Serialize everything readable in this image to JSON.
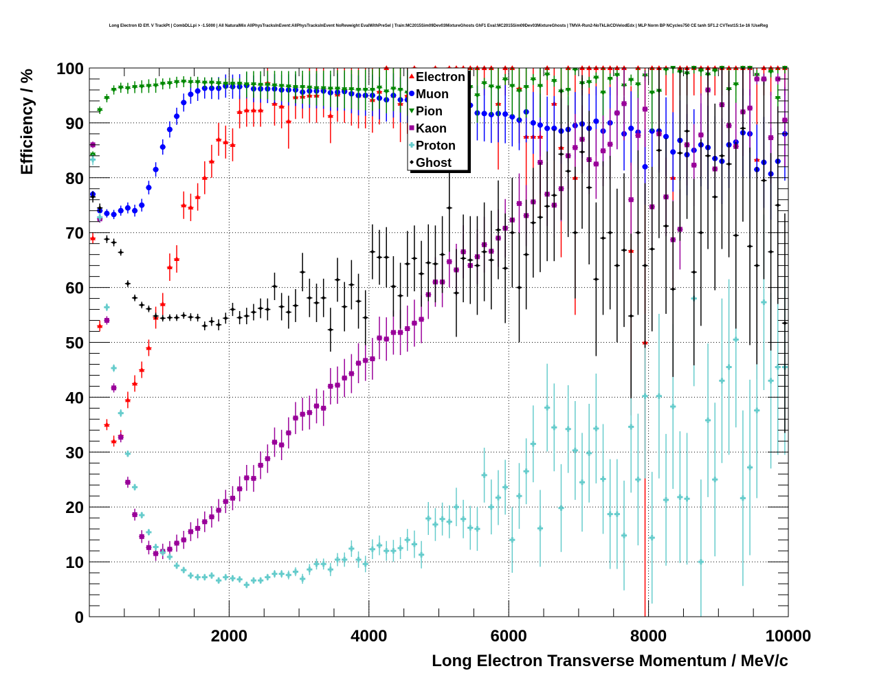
{
  "chart_data": {
    "type": "scatter",
    "title": "Long Electron ID Eff. V TrackPt | CombDLLpi > -1.5000 | All NaturalMix AllPhysTracksInEvent:AllPhysTracksInEvent NoReweight EvalWithPreSel | Train:MC2015Sim09Dev03MixtureGhosts GhF1 Eval:MC2015Sim09Dev03MixtureGhosts | TMVA-Run2-NoTkLikCDVelodEdx | MLP Norm BP NCycles750 CE tanh SF1.2 CVTest15:1e-16 !UseReg",
    "xlabel": "Long Electron Transverse Momentum / MeV/c",
    "ylabel": "Efficiency / %",
    "xlim": [
      0,
      10000
    ],
    "ylim": [
      0,
      100
    ],
    "x_ticks": [
      "2000",
      "4000",
      "6000",
      "8000",
      "10000"
    ],
    "x_tick_values": [
      2000,
      4000,
      6000,
      8000,
      10000
    ],
    "y_ticks": [
      "0",
      "10",
      "20",
      "30",
      "40",
      "50",
      "60",
      "70",
      "80",
      "90",
      "100"
    ],
    "y_tick_values": [
      0,
      10,
      20,
      30,
      40,
      50,
      60,
      70,
      80,
      90,
      100
    ],
    "grid": true,
    "legend_position": "top-center",
    "bin_width": 100,
    "x": [
      50,
      150,
      250,
      350,
      450,
      550,
      650,
      750,
      850,
      950,
      1050,
      1150,
      1250,
      1350,
      1450,
      1550,
      1650,
      1750,
      1850,
      1950,
      2050,
      2150,
      2250,
      2350,
      2450,
      2550,
      2650,
      2750,
      2850,
      2950,
      3050,
      3150,
      3250,
      3350,
      3450,
      3550,
      3650,
      3750,
      3850,
      3950,
      4050,
      4150,
      4250,
      4350,
      4450,
      4550,
      4650,
      4750,
      4850,
      4950,
      5050,
      5150,
      5250,
      5350,
      5450,
      5550,
      5650,
      5750,
      5850,
      5950,
      6050,
      6150,
      6250,
      6350,
      6450,
      6550,
      6650,
      6750,
      6850,
      6950,
      7050,
      7150,
      7250,
      7350,
      7450,
      7550,
      7650,
      7750,
      7850,
      7950,
      8050,
      8150,
      8250,
      8350,
      8450,
      8550,
      8650,
      8750,
      8850,
      8950,
      9050,
      9150,
      9250,
      9350,
      9450,
      9550,
      9650,
      9750,
      9850,
      9950
    ],
    "series": [
      {
        "name": "Electron",
        "color": "#ff0000",
        "marker": "triangle-up",
        "values": [
          69,
          53,
          35,
          32,
          33,
          39.5,
          42.5,
          45,
          49,
          54.5,
          57,
          63.7,
          65.2,
          75,
          74.6,
          76.5,
          80,
          83,
          87,
          86.5,
          86,
          92,
          92.3,
          92.3,
          92.3,
          97.3,
          93.5,
          93,
          90.3,
          94.7,
          94.8,
          95,
          95,
          96,
          91.3,
          95.2,
          96,
          95.5,
          95,
          95,
          94.2,
          95.7,
          100,
          95,
          93.5,
          95,
          100,
          93,
          97.7,
          100,
          96,
          100,
          100,
          100,
          100,
          100,
          100,
          100,
          93.5,
          100,
          100,
          96.3,
          87.5,
          87.5,
          87.5,
          100,
          93.5,
          85.5,
          100,
          80,
          100,
          100,
          100,
          100,
          100,
          100,
          100,
          66.7,
          100,
          50,
          100,
          100,
          100,
          80,
          100,
          100,
          100,
          100,
          100,
          100,
          100,
          100,
          100,
          100,
          100,
          83.3,
          100,
          100,
          100,
          100
        ],
        "errors": [
          1,
          1,
          1,
          1,
          1,
          1.5,
          1.5,
          1.5,
          1.5,
          2,
          2,
          2.5,
          2.5,
          2.5,
          2.5,
          2.5,
          3,
          3,
          3,
          3,
          3,
          3,
          3,
          3,
          3,
          3,
          4,
          4,
          5,
          4,
          4,
          5,
          5,
          5,
          5,
          5,
          6,
          6,
          6,
          6,
          6,
          6,
          5,
          6,
          7,
          7,
          5,
          8,
          6,
          5,
          8,
          5,
          5,
          5,
          5,
          5,
          5,
          5,
          12,
          5,
          5,
          10,
          15,
          15,
          15,
          5,
          15,
          20,
          5,
          25,
          5,
          5,
          5,
          5,
          5,
          5,
          5,
          30,
          5,
          50,
          5,
          5,
          5,
          20,
          5,
          5,
          5,
          5,
          5,
          5,
          5,
          5,
          5,
          5,
          5,
          40,
          5,
          5,
          5,
          5
        ]
      },
      {
        "name": "Muon",
        "color": "#0000ff",
        "marker": "circle",
        "values": [
          77,
          74,
          73.5,
          73.3,
          74,
          74.5,
          74,
          75,
          78.2,
          81.5,
          85.6,
          88.8,
          91.2,
          93.7,
          95.2,
          95.8,
          96.3,
          96.3,
          96.3,
          96.7,
          96.6,
          96.6,
          96.8,
          96.2,
          96.2,
          96.2,
          96.2,
          96,
          96,
          96,
          95.6,
          95.8,
          95.8,
          95.8,
          95.5,
          95.6,
          95.7,
          95.3,
          95,
          95,
          95,
          94.5,
          94.2,
          95,
          94.2,
          94.2,
          94.5,
          94,
          94,
          93.5,
          93.3,
          92.7,
          92.7,
          93,
          93.2,
          91.8,
          91.7,
          91.5,
          91.7,
          91.6,
          91.1,
          90.5,
          92,
          90,
          89.6,
          89,
          89,
          88.5,
          88.8,
          89.5,
          89.8,
          89,
          90.3,
          88.5,
          90,
          91.8,
          88,
          89,
          88.3,
          82,
          88.5,
          88.5,
          87.5,
          84.7,
          86.8,
          84.2,
          85,
          86,
          85.5,
          83.5,
          83,
          86,
          86.5,
          88.2,
          88,
          81.5,
          82.8,
          80.7,
          83,
          88
        ]
      },
      {
        "name": "Pion",
        "color": "#008800",
        "marker": "triangle-down",
        "values": [
          84.2,
          92.3,
          94.5,
          96,
          96.4,
          96.3,
          96.5,
          96.6,
          96.7,
          96.8,
          97.1,
          97.2,
          97.4,
          97.5,
          97.4,
          97.4,
          97.3,
          97.3,
          97.2,
          97.1,
          97.1,
          97.1,
          97,
          97,
          96.9,
          96.9,
          96.8,
          96.7,
          96.6,
          96.5,
          96.5,
          96.4,
          96.3,
          96.3,
          96.2,
          96.2,
          96.1,
          96.1,
          96,
          96,
          96,
          96.4,
          95.7,
          96.2,
          96,
          95.5,
          95.8,
          95,
          96,
          97.3,
          96.7,
          95.7,
          96.3,
          98.2,
          96.5,
          95,
          97.2,
          96.6,
          96.4,
          97.9,
          96.7,
          95.8,
          96.5,
          97.9,
          96.7,
          98.8,
          97.6,
          95.7,
          96,
          99.7,
          97.2,
          97.4,
          98.2,
          95.5,
          98,
          98.7,
          96.8,
          97.8,
          97,
          98.6,
          95.5,
          95.8,
          99.7,
          100,
          99.3,
          99,
          100,
          99.5,
          98.8,
          99.5,
          100,
          96.1,
          97,
          100,
          100,
          98.7,
          97.8,
          99.3,
          94.5,
          100
        ]
      },
      {
        "name": "Kaon",
        "color": "#990099",
        "marker": "square",
        "values": [
          86,
          72.5,
          54,
          41.7,
          32.7,
          24.5,
          18.6,
          14.6,
          12.6,
          11.5,
          11.9,
          12.3,
          13.4,
          14,
          15.5,
          16.1,
          17.3,
          18.2,
          19.4,
          21,
          21.6,
          23.3,
          25.3,
          25.2,
          27.6,
          28.8,
          31.8,
          31.3,
          33.5,
          36.2,
          36.9,
          37.2,
          38.4,
          38,
          42,
          42.2,
          43.5,
          44.3,
          46.2,
          46.7,
          47,
          50.8,
          50.6,
          51.8,
          51.8,
          52.5,
          53.5,
          54.2,
          58.7,
          61,
          61,
          64.7,
          63.2,
          66.5,
          64,
          65.6,
          67.8,
          66.6,
          69,
          70.8,
          72.3,
          75.3,
          73.1,
          75.6,
          82.8,
          77,
          75,
          78,
          84,
          85.5,
          87,
          83.3,
          82.5,
          84.9,
          86.1,
          91.8,
          93.5,
          76,
          87.7,
          92.5,
          74.7,
          88,
          76.5,
          68.7,
          70.6,
          86,
          82.3,
          87.8,
          96,
          81.6,
          93.3,
          89.5,
          85.7,
          92,
          92.7,
          98,
          98,
          87.3,
          98,
          90.5
        ]
      },
      {
        "name": "Proton",
        "color": "#66cccc",
        "marker": "cross",
        "values": [
          83.3,
          72.8,
          56.4,
          45.3,
          37.1,
          29.7,
          23.6,
          18.5,
          15.4,
          12.7,
          11.7,
          10.9,
          9.3,
          8.5,
          7.5,
          7.2,
          7.2,
          7.5,
          6.6,
          7.2,
          7,
          6.8,
          5.8,
          6.6,
          6.6,
          7.2,
          7.8,
          7.8,
          7.6,
          8.2,
          6.9,
          8.6,
          9.6,
          9.6,
          8.6,
          10.4,
          10.4,
          12.4,
          10.4,
          9.6,
          12.3,
          13,
          12,
          12,
          12.5,
          14,
          13.2,
          11.3,
          17.9,
          16.8,
          17.8,
          17.3,
          20,
          17.8,
          16.2,
          16,
          25.8,
          20,
          21.7,
          23.6,
          14,
          22,
          26.5,
          31.5,
          16.1,
          38.1,
          34.5,
          19.8,
          34.2,
          30.3,
          24.5,
          29.8,
          34.3,
          25.1,
          18.7,
          18.7,
          14.8,
          34.6,
          25,
          40.2,
          14.4,
          40.2,
          21.3,
          38.3,
          21.8,
          21.5,
          58,
          10,
          35.8,
          25,
          43,
          45.5,
          50.5,
          21.6,
          27.2,
          37.6,
          57.3,
          43,
          45.5,
          45.5
        ],
        "errors": [
          1,
          0.8,
          0.7,
          0.7,
          0.7,
          0.6,
          0.6,
          0.6,
          0.6,
          0.6,
          0.6,
          0.6,
          0.6,
          0.6,
          0.6,
          0.6,
          0.6,
          0.6,
          0.6,
          0.6,
          0.6,
          0.6,
          0.6,
          0.6,
          0.6,
          0.6,
          0.7,
          0.7,
          0.8,
          0.8,
          0.9,
          1,
          1,
          1,
          1.2,
          1.2,
          1.3,
          1.5,
          1.5,
          1.5,
          1.8,
          1.8,
          1.8,
          2,
          2,
          2,
          2.5,
          2.5,
          3,
          3,
          3,
          3,
          3.5,
          3.5,
          4,
          4,
          5,
          5,
          5,
          5,
          6,
          6,
          6,
          7,
          7,
          8,
          8,
          8,
          8,
          9,
          9,
          9,
          10,
          10,
          10,
          10,
          10,
          12,
          12,
          15,
          12,
          15,
          12,
          15,
          12,
          12,
          16,
          15,
          14,
          14,
          15,
          16,
          16,
          16,
          16,
          16,
          16,
          16,
          16,
          16
        ]
      },
      {
        "name": "Ghost",
        "color": "#000000",
        "marker": "diamond",
        "values": [
          76.5,
          74.5,
          68.8,
          68.2,
          66.4,
          60.7,
          58.1,
          56.8,
          56.1,
          54.8,
          54.4,
          54.5,
          54.5,
          54.9,
          54.6,
          54.5,
          53,
          53.8,
          53.2,
          54.4,
          56,
          54.5,
          54.8,
          55.5,
          56.2,
          56,
          60.2,
          56.5,
          55.5,
          56.7,
          62.8,
          58.1,
          57.2,
          58.1,
          52.3,
          61.4,
          56.5,
          60.5,
          57.5,
          54.5,
          66.5,
          65.5,
          65.5,
          60.2,
          58.5,
          64.3,
          65.3,
          62.5,
          64.5,
          64.3,
          66,
          74.5,
          59,
          65.3,
          65,
          64,
          66.5,
          65,
          70.5,
          63.5,
          70,
          60,
          66,
          71.8,
          72.8,
          74.8,
          76.8,
          84.3,
          81.2,
          70,
          84.7,
          78.2,
          61.5,
          69,
          70,
          64,
          66.8,
          54.8,
          70,
          64,
          67,
          85,
          71.2,
          59.7,
          84.5,
          88.5,
          62.8,
          70,
          84,
          76.5,
          84,
          82.5,
          69.5,
          89,
          67.5,
          64,
          79.5,
          66.5,
          75,
          53.5
        ],
        "errors": [
          1,
          0.8,
          0.7,
          0.7,
          0.6,
          0.6,
          0.6,
          0.6,
          0.6,
          0.6,
          0.6,
          0.6,
          0.6,
          0.6,
          0.7,
          0.7,
          0.8,
          0.8,
          1,
          1,
          1.2,
          1.2,
          1.5,
          1.5,
          1.8,
          2,
          2.5,
          2.5,
          3,
          3,
          3.5,
          3.5,
          3.5,
          3.5,
          4,
          4,
          4.5,
          4.5,
          5,
          5,
          5,
          5,
          5.5,
          5.5,
          6,
          6,
          6,
          6,
          7,
          7,
          7,
          8,
          8,
          8,
          8,
          9,
          9,
          9,
          9,
          10,
          10,
          10,
          10,
          10,
          10,
          10,
          12,
          12,
          12,
          12,
          14,
          14,
          14,
          14,
          14,
          14,
          14,
          15,
          15,
          15,
          15,
          16,
          16,
          16,
          16,
          16,
          17,
          17,
          17,
          17,
          17,
          17,
          17,
          17,
          18,
          18,
          18,
          18,
          18,
          20
        ]
      }
    ]
  }
}
